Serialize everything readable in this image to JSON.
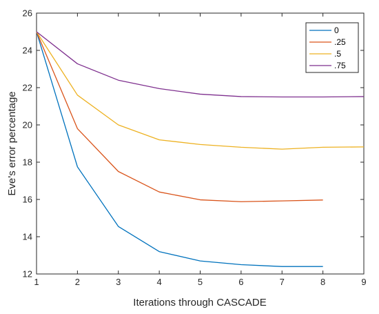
{
  "chart_data": {
    "type": "line",
    "xlabel": "Iterations through CASCADE",
    "ylabel": "Eve's error percentage",
    "xlim": [
      1,
      9
    ],
    "ylim": [
      12,
      26
    ],
    "xticks": [
      "1",
      "2",
      "3",
      "4",
      "5",
      "6",
      "7",
      "8",
      "9"
    ],
    "yticks": [
      "12",
      "14",
      "16",
      "18",
      "20",
      "22",
      "24",
      "26"
    ],
    "grid": false,
    "legend_position": "top-right",
    "series": [
      {
        "name": "0",
        "color": "#0072BD",
        "x": [
          1,
          2,
          3,
          4,
          5,
          6,
          7,
          8
        ],
        "y": [
          25.0,
          17.75,
          14.55,
          13.2,
          12.7,
          12.5,
          12.4,
          12.4
        ]
      },
      {
        "name": ".25",
        "color": "#D95319",
        "x": [
          1,
          2,
          3,
          4,
          5,
          6,
          7,
          8
        ],
        "y": [
          25.0,
          19.8,
          17.5,
          16.4,
          15.98,
          15.88,
          15.92,
          15.97
        ]
      },
      {
        "name": ".5",
        "color": "#EDB120",
        "x": [
          1,
          2,
          3,
          4,
          5,
          6,
          7,
          8,
          9
        ],
        "y": [
          25.0,
          21.6,
          20.0,
          19.2,
          18.95,
          18.8,
          18.7,
          18.8,
          18.82
        ]
      },
      {
        "name": ".75",
        "color": "#7E2F8E",
        "x": [
          1,
          2,
          3,
          4,
          5,
          6,
          7,
          8,
          9
        ],
        "y": [
          25.0,
          23.28,
          22.4,
          21.95,
          21.65,
          21.52,
          21.5,
          21.5,
          21.52
        ]
      }
    ]
  }
}
